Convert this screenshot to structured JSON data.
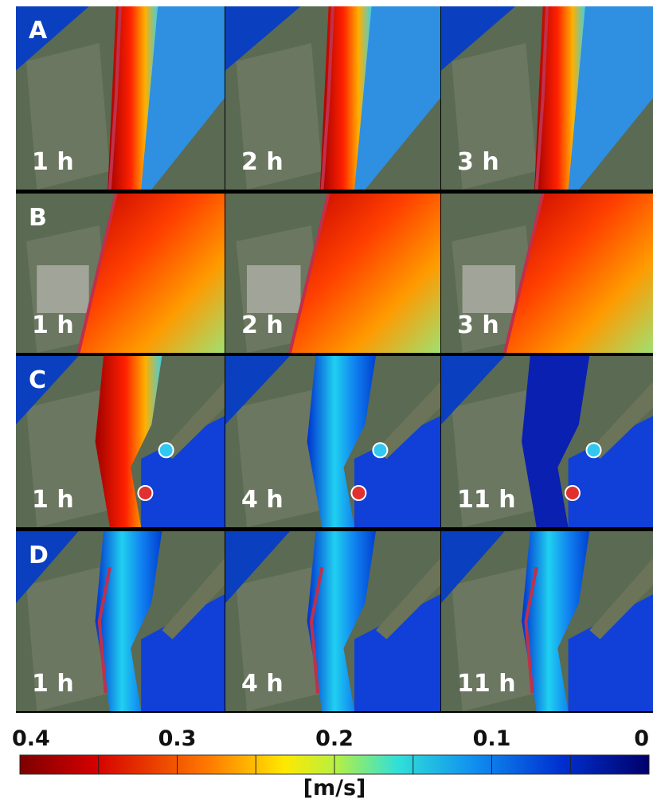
{
  "rows": [
    {
      "label": "A",
      "panels": [
        "1 h",
        "2 h",
        "3 h"
      ]
    },
    {
      "label": "B",
      "panels": [
        "1 h",
        "2 h",
        "3 h"
      ]
    },
    {
      "label": "C",
      "panels": [
        "1 h",
        "4 h",
        "11 h"
      ]
    },
    {
      "label": "D",
      "panels": [
        "1 h",
        "4 h",
        "11 h"
      ]
    }
  ],
  "colorbar": {
    "lim": [
      0.4,
      0
    ],
    "ticks": [
      0.4,
      0.3,
      0.2,
      0.1,
      0
    ],
    "minor_ticks": [
      0.35,
      0.25,
      0.15,
      0.05
    ],
    "label": "[m/s]"
  }
}
